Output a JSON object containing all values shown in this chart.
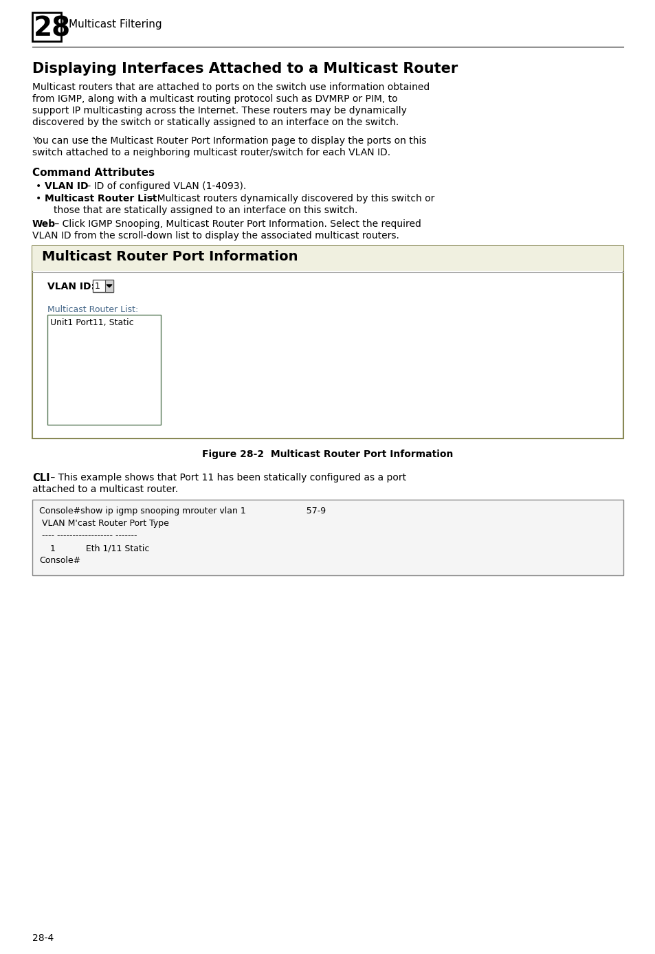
{
  "page_number": "28-4",
  "chapter_number": "28",
  "chapter_title": "Multicast Filtering",
  "main_title": "Displaying Interfaces Attached to a Multicast Router",
  "para1_lines": [
    "Multicast routers that are attached to ports on the switch use information obtained",
    "from IGMP, along with a multicast routing protocol such as DVMRP or PIM, to",
    "support IP multicasting across the Internet. These routers may be dynamically",
    "discovered by the switch or statically assigned to an interface on the switch."
  ],
  "para2_lines": [
    "You can use the Multicast Router Port Information page to display the ports on this",
    "switch attached to a neighboring multicast router/switch for each VLAN ID."
  ],
  "cmd_attr_title": "Command Attributes",
  "bullet1_bold": "VLAN ID",
  "bullet1_rest": " – ID of configured VLAN (1-4093).",
  "bullet2_bold": "Multicast Router List",
  "bullet2_rest": " – Multicast routers dynamically discovered by this switch or",
  "bullet2_line2": "those that are statically assigned to an interface on this switch.",
  "web_line1_bold": "Web",
  "web_line1_rest": " – Click IGMP Snooping, Multicast Router Port Information. Select the required",
  "web_line2": "VLAN ID from the scroll-down list to display the associated multicast routers.",
  "gui_title": "Multicast Router Port Information",
  "vlan_label": "VLAN ID:",
  "vlan_value": "1",
  "mcast_list_label": "Multicast Router List:",
  "mcast_list_item": "Unit1 Port11, Static",
  "figure_caption": "Figure 28-2  Multicast Router Port Information",
  "cli_line1_bold": "CLI",
  "cli_line1_rest": " – This example shows that Port 11 has been statically configured as a port",
  "cli_line2": "attached to a multicast router.",
  "console_lines": [
    "Console#show ip igmp snooping mrouter vlan 1                      57-9",
    " VLAN M'cast Router Port Type",
    " ---- ------------------ -------",
    "    1           Eth 1/11 Static",
    "Console#"
  ],
  "bg_color": "#ffffff",
  "text_color": "#000000",
  "console_bg": "#f5f5f5",
  "gui_border_color": "#888855",
  "gui_header_bg": "#f0f0e0",
  "gui_bg_color": "#ffffff",
  "console_border_color": "#888888",
  "listbox_border": "#557755",
  "mcast_label_color": "#446688"
}
